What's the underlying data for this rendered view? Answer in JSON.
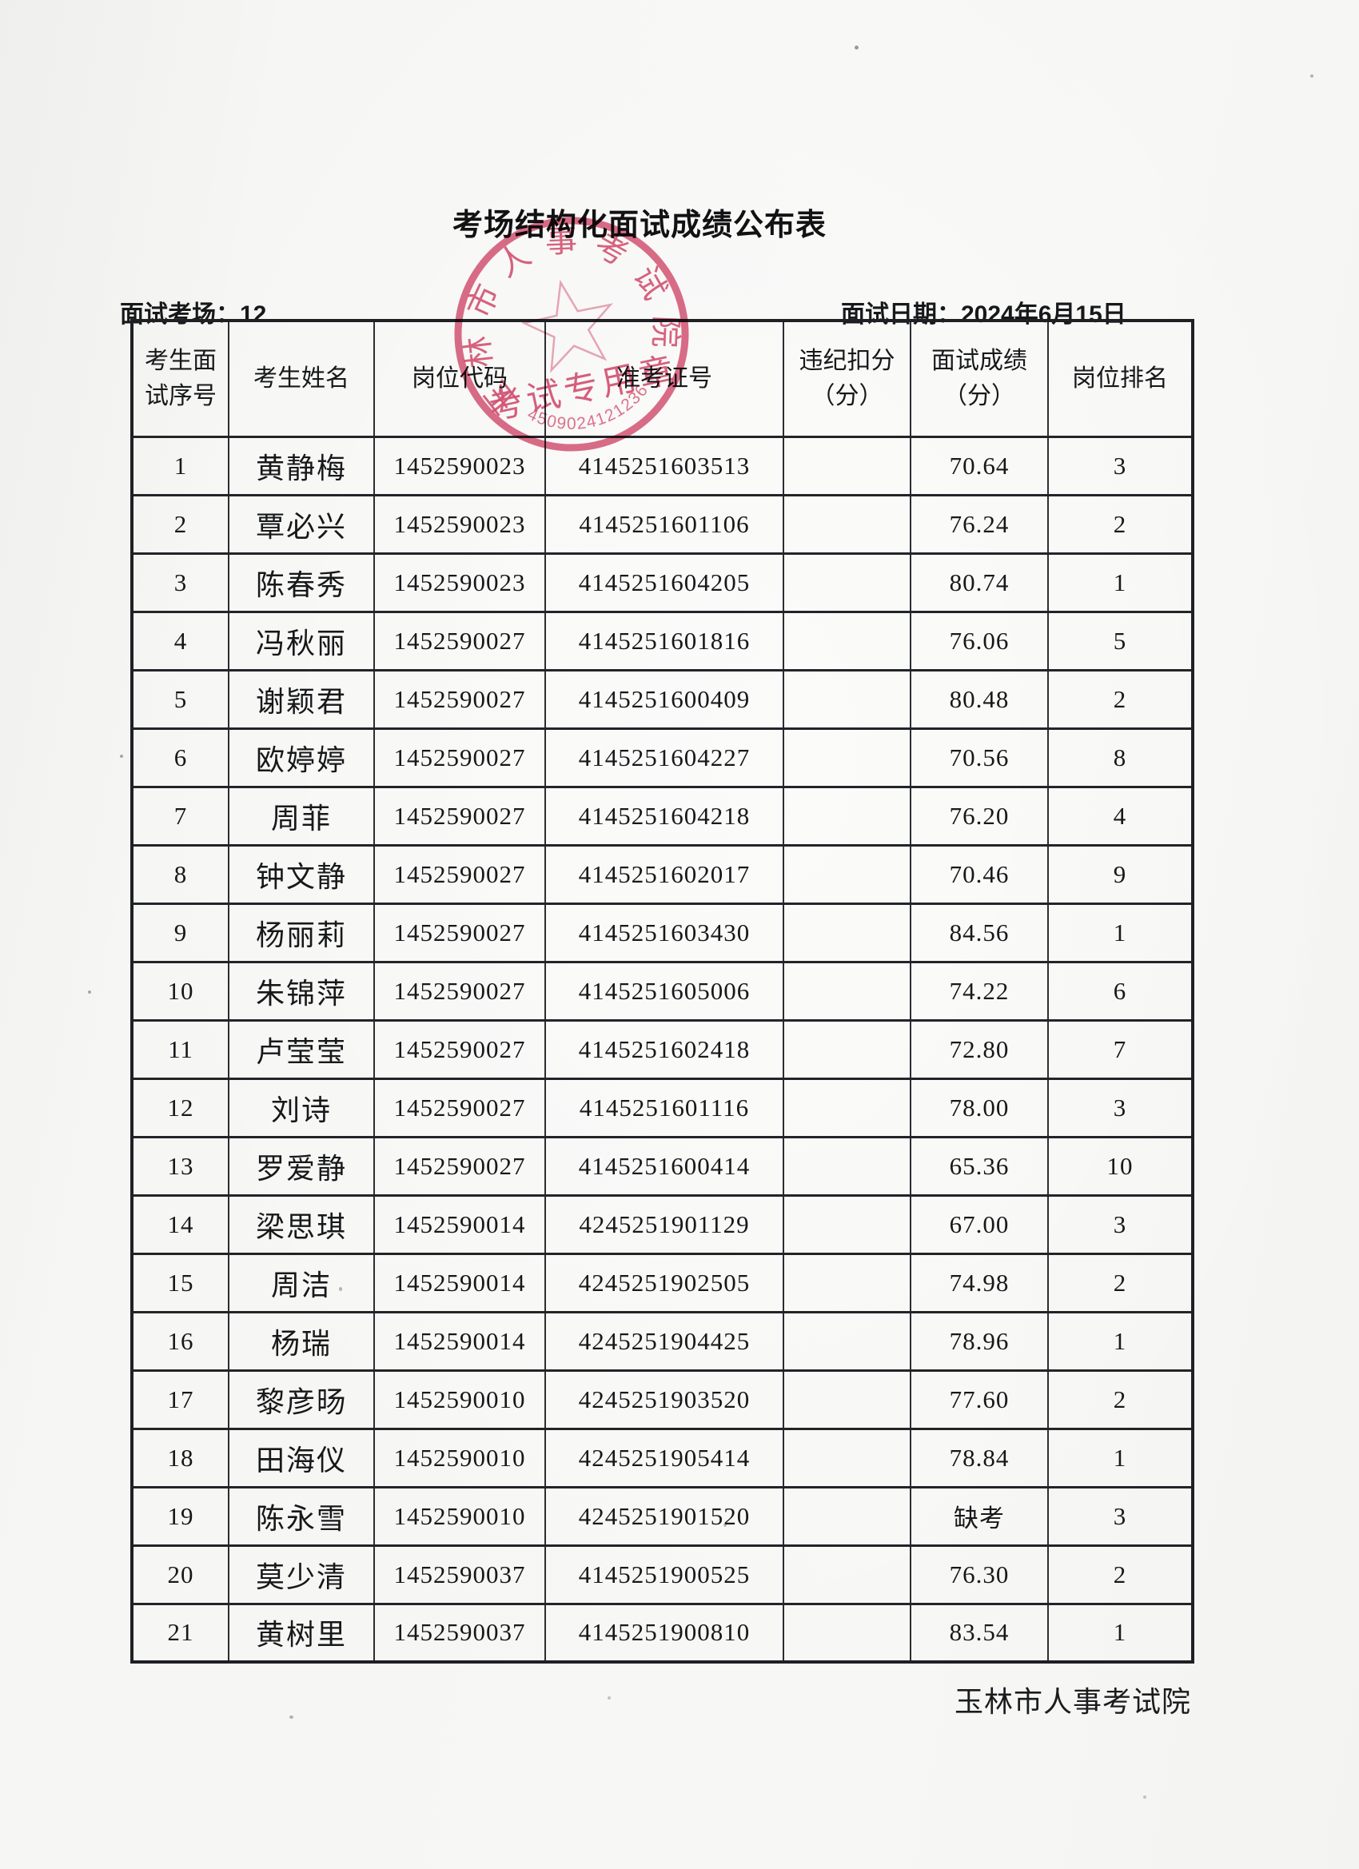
{
  "page": {
    "title": "考场结构化面试成绩公布表",
    "room_label": "面试考场：12",
    "date_label": "面试日期：2024年6月15日",
    "footer": "玉林市人事考试院"
  },
  "stamp": {
    "ring_text": "玉林市人事考试院",
    "center_text": "考试专用章",
    "serial_number": "4509024121236",
    "color": "#d4466a"
  },
  "table": {
    "col_keys": [
      "seq",
      "name",
      "position_code",
      "ticket_no",
      "deduction",
      "score",
      "rank"
    ],
    "headers": [
      "考生面试序号",
      "考生姓名",
      "岗位代码",
      "准考证号",
      "违纪扣分（分）",
      "面试成绩（分）",
      "岗位排名"
    ],
    "rows": [
      [
        "1",
        "黄静梅",
        "1452590023",
        "4145251603513",
        "",
        "70.64",
        "3"
      ],
      [
        "2",
        "覃必兴",
        "1452590023",
        "4145251601106",
        "",
        "76.24",
        "2"
      ],
      [
        "3",
        "陈春秀",
        "1452590023",
        "4145251604205",
        "",
        "80.74",
        "1"
      ],
      [
        "4",
        "冯秋丽",
        "1452590027",
        "4145251601816",
        "",
        "76.06",
        "5"
      ],
      [
        "5",
        "谢颖君",
        "1452590027",
        "4145251600409",
        "",
        "80.48",
        "2"
      ],
      [
        "6",
        "欧婷婷",
        "1452590027",
        "4145251604227",
        "",
        "70.56",
        "8"
      ],
      [
        "7",
        "周菲",
        "1452590027",
        "4145251604218",
        "",
        "76.20",
        "4"
      ],
      [
        "8",
        "钟文静",
        "1452590027",
        "4145251602017",
        "",
        "70.46",
        "9"
      ],
      [
        "9",
        "杨丽莉",
        "1452590027",
        "4145251603430",
        "",
        "84.56",
        "1"
      ],
      [
        "10",
        "朱锦萍",
        "1452590027",
        "4145251605006",
        "",
        "74.22",
        "6"
      ],
      [
        "11",
        "卢莹莹",
        "1452590027",
        "4145251602418",
        "",
        "72.80",
        "7"
      ],
      [
        "12",
        "刘诗",
        "1452590027",
        "4145251601116",
        "",
        "78.00",
        "3"
      ],
      [
        "13",
        "罗爱静",
        "1452590027",
        "4145251600414",
        "",
        "65.36",
        "10"
      ],
      [
        "14",
        "梁思琪",
        "1452590014",
        "4245251901129",
        "",
        "67.00",
        "3"
      ],
      [
        "15",
        "周洁",
        "1452590014",
        "4245251902505",
        "",
        "74.98",
        "2"
      ],
      [
        "16",
        "杨瑞",
        "1452590014",
        "4245251904425",
        "",
        "78.96",
        "1"
      ],
      [
        "17",
        "黎彦旸",
        "1452590010",
        "4245251903520",
        "",
        "77.60",
        "2"
      ],
      [
        "18",
        "田海仪",
        "1452590010",
        "4245251905414",
        "",
        "78.84",
        "1"
      ],
      [
        "19",
        "陈永雪",
        "1452590010",
        "4245251901520",
        "",
        "缺考",
        "3"
      ],
      [
        "20",
        "莫少清",
        "1452590037",
        "4145251900525",
        "",
        "76.30",
        "2"
      ],
      [
        "21",
        "黄树里",
        "1452590037",
        "4145251900810",
        "",
        "83.54",
        "1"
      ]
    ]
  }
}
